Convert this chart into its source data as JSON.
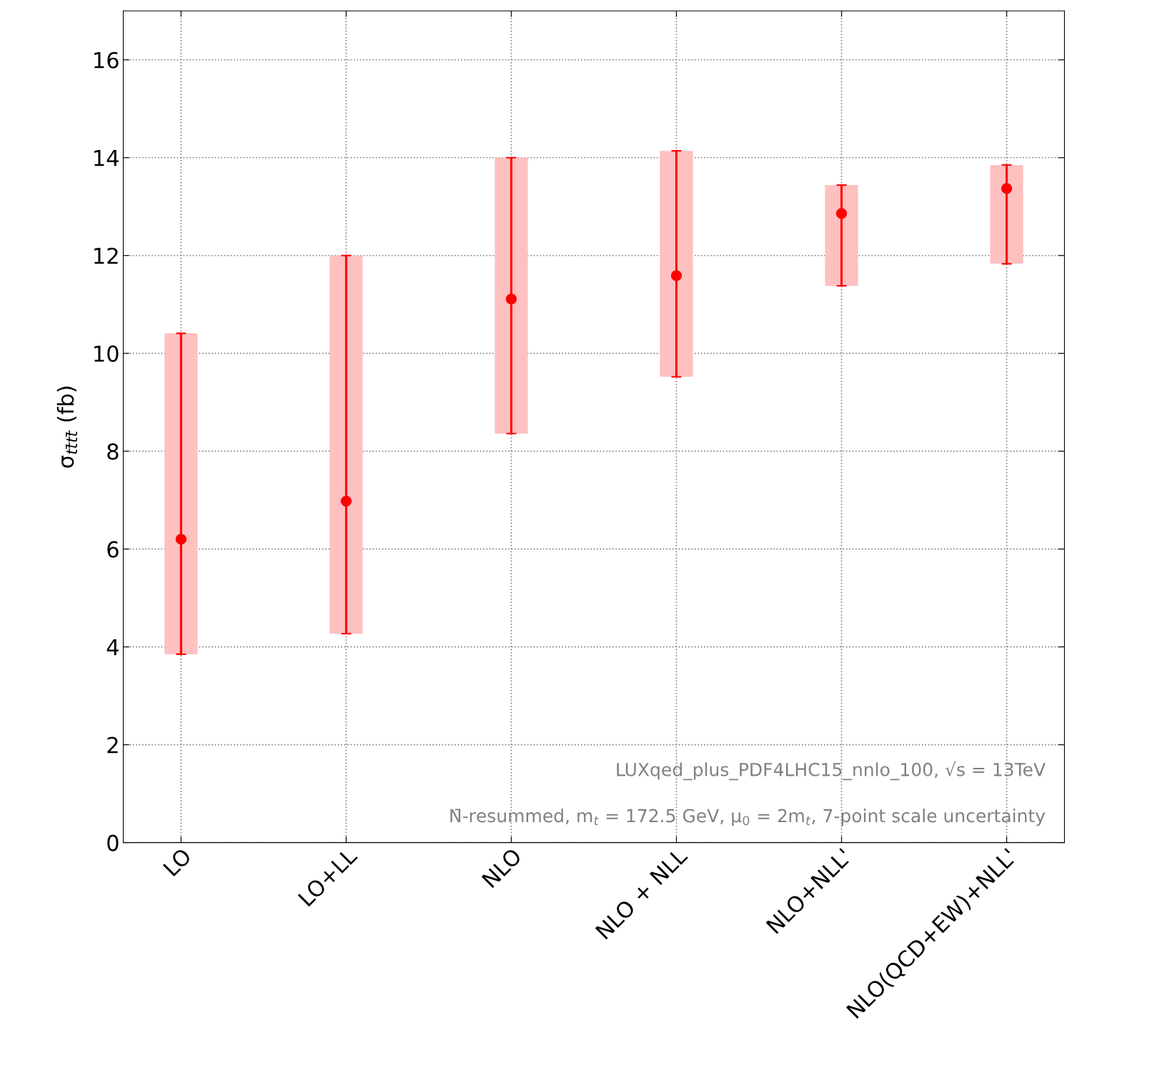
{
  "chart_data": {
    "type": "scatter",
    "ylabel": "σ$_{tt̄tt̄}$ (fb)",
    "categories": [
      "LO",
      "LO+LL",
      "NLO",
      "NLO + NLL",
      "NLO+NLL'",
      "NLO(QCD+EW)+NLL'"
    ],
    "series": [
      {
        "type": "bar",
        "color": "#ffc0c0",
        "base": [
          3.85,
          4.27,
          8.36,
          9.52,
          11.38,
          11.83
        ],
        "values": [
          6.56,
          7.73,
          5.64,
          4.62,
          2.06,
          2.02
        ]
      },
      {
        "color": "#ff0000",
        "values": [
          6.2,
          6.98,
          11.11,
          11.59,
          12.86,
          13.37
        ],
        "errors": [
          [
            3.85,
            10.41
          ],
          [
            4.27,
            12.0
          ],
          [
            8.36,
            14.0
          ],
          [
            9.52,
            14.14
          ],
          [
            11.38,
            13.44
          ],
          [
            11.83,
            13.85
          ]
        ]
      }
    ],
    "ylim": [
      0,
      17
    ],
    "yticks": [
      0,
      2,
      4,
      6,
      8,
      10,
      12,
      14,
      16
    ],
    "grid": true,
    "marker": "circle",
    "annotations": [
      "LUXqed_plus_PDF4LHC15_nnlo_100, √s = 13TeV",
      "N̄-resummed, m$_{t}$ = 172.5 GeV, μ$_{0}$ = 2m$_{t}$, 7-point scale uncertainty"
    ]
  }
}
